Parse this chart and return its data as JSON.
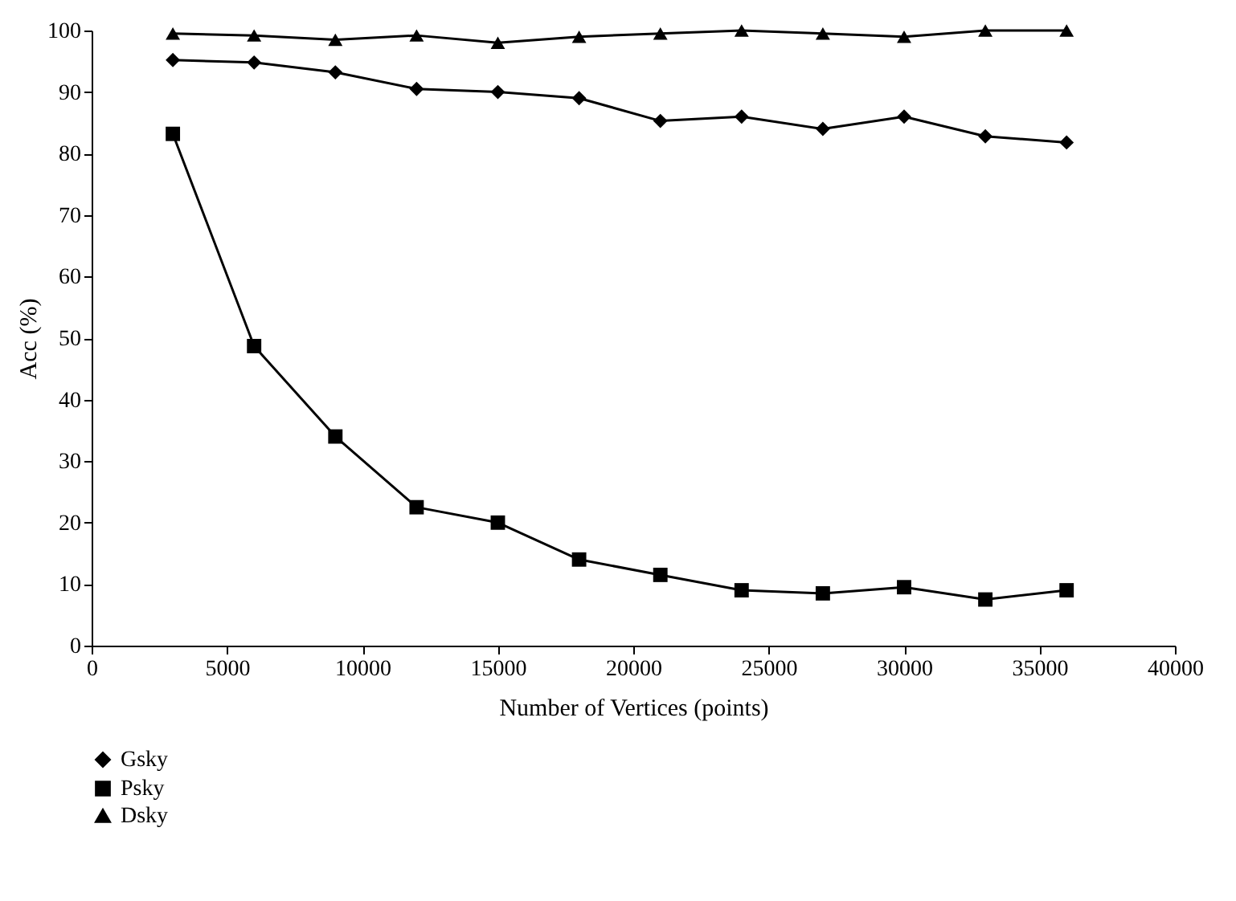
{
  "chart_data": {
    "type": "line",
    "xlabel": "Number of Vertices (points)",
    "ylabel": "Acc (%)",
    "x": [
      3000,
      6000,
      9000,
      12000,
      15000,
      18000,
      21000,
      24000,
      27000,
      30000,
      33000,
      36000
    ],
    "series": [
      {
        "name": "Gsky",
        "color": "#000000",
        "marker": "diamond",
        "values": [
          95.2,
          94.8,
          93.2,
          90.5,
          90,
          89,
          85.3,
          86,
          84,
          86,
          82.8,
          81.8
        ]
      },
      {
        "name": "Psky",
        "color": "#000000",
        "marker": "square",
        "values": [
          83.2,
          48.7,
          34,
          22.5,
          20,
          14,
          11.5,
          9,
          8.5,
          9.5,
          7.5,
          9
        ]
      },
      {
        "name": "Dsky",
        "color": "#000000",
        "marker": "triangle",
        "values": [
          99.5,
          99.2,
          98.5,
          99.2,
          98,
          99,
          99.5,
          100,
          99.5,
          99,
          100,
          100
        ]
      }
    ],
    "xlim": [
      0,
      40000
    ],
    "xticks": [
      0,
      5000,
      10000,
      15000,
      20000,
      25000,
      30000,
      35000,
      40000
    ],
    "ylim": [
      0,
      100
    ],
    "yticks": [
      0,
      10,
      20,
      30,
      40,
      50,
      60,
      70,
      80,
      90,
      100
    ],
    "grid": false,
    "legend": "bottom",
    "line_style": "solid"
  }
}
